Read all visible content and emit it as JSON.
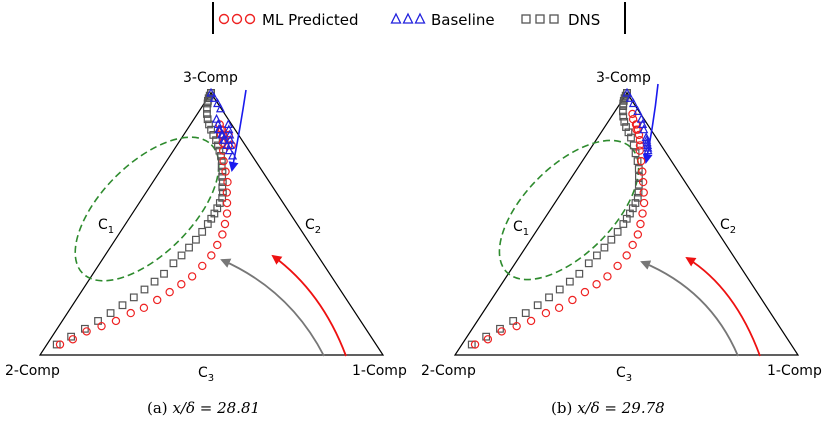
{
  "legend": {
    "entries": [
      {
        "label": "ML Predicted",
        "marker": "circle",
        "color": "#ee2222"
      },
      {
        "label": "Baseline",
        "marker": "triangle",
        "color": "#2222dd"
      },
      {
        "label": "DNS",
        "marker": "square",
        "color": "#555555"
      }
    ]
  },
  "colors": {
    "ml": "#ee2222",
    "baseline": "#2222dd",
    "dns": "#555555",
    "region": "#2e8b2e",
    "arrow_blue": "#1a1aee",
    "arrow_red": "#ee1111",
    "arrow_gray": "#777777"
  },
  "chart_data": [
    {
      "type": "scatter",
      "caption_prefix": "(a)",
      "caption_math": "x/δ = 28.81",
      "corner_labels": {
        "top": "3-Comp",
        "left": "2-Comp",
        "right": "1-Comp"
      },
      "edge_labels": {
        "c1": "C",
        "c1_sub": "1",
        "c2": "C",
        "c2_sub": "2",
        "c3": "C",
        "c3_sub": "3"
      },
      "series": [
        {
          "name": "DNS",
          "points": [
            [
              0.03,
              0.04
            ],
            [
              0.06,
              0.07
            ],
            [
              0.09,
              0.1
            ],
            [
              0.12,
              0.13
            ],
            [
              0.15,
              0.16
            ],
            [
              0.18,
              0.19
            ],
            [
              0.21,
              0.22
            ],
            [
              0.24,
              0.25
            ],
            [
              0.27,
              0.28
            ],
            [
              0.3,
              0.31
            ],
            [
              0.33,
              0.35
            ],
            [
              0.36,
              0.38
            ],
            [
              0.39,
              0.41
            ],
            [
              0.42,
              0.44
            ],
            [
              0.45,
              0.47
            ],
            [
              0.48,
              0.5
            ],
            [
              0.5,
              0.52
            ],
            [
              0.52,
              0.54
            ],
            [
              0.54,
              0.56
            ],
            [
              0.56,
              0.58
            ],
            [
              0.58,
              0.6
            ],
            [
              0.59,
              0.62
            ],
            [
              0.59,
              0.64
            ],
            [
              0.6,
              0.66
            ],
            [
              0.6,
              0.68
            ],
            [
              0.61,
              0.7
            ],
            [
              0.61,
              0.72
            ],
            [
              0.62,
              0.74
            ],
            [
              0.62,
              0.76
            ],
            [
              0.61,
              0.78
            ],
            [
              0.6,
              0.8
            ],
            [
              0.58,
              0.82
            ],
            [
              0.54,
              0.84
            ],
            [
              0.5,
              0.86
            ],
            [
              0.45,
              0.88
            ],
            [
              0.4,
              0.9
            ],
            [
              0.35,
              0.92
            ],
            [
              0.3,
              0.94
            ],
            [
              0.25,
              0.96
            ],
            [
              0.2,
              0.97
            ],
            [
              0.16,
              0.98
            ],
            [
              0.12,
              0.99
            ],
            [
              0.1,
              1.0
            ],
            [
              0.08,
              1.0
            ],
            [
              0.06,
              1.0
            ]
          ]
        },
        {
          "name": "ML Predicted",
          "points": [
            [
              0.04,
              0.04
            ],
            [
              0.07,
              0.06
            ],
            [
              0.1,
              0.09
            ],
            [
              0.14,
              0.11
            ],
            [
              0.18,
              0.13
            ],
            [
              0.22,
              0.16
            ],
            [
              0.26,
              0.18
            ],
            [
              0.3,
              0.21
            ],
            [
              0.34,
              0.24
            ],
            [
              0.38,
              0.27
            ],
            [
              0.42,
              0.3
            ],
            [
              0.46,
              0.34
            ],
            [
              0.5,
              0.38
            ],
            [
              0.53,
              0.42
            ],
            [
              0.56,
              0.46
            ],
            [
              0.58,
              0.5
            ],
            [
              0.6,
              0.54
            ],
            [
              0.61,
              0.58
            ],
            [
              0.62,
              0.62
            ],
            [
              0.64,
              0.66
            ],
            [
              0.64,
              0.7
            ],
            [
              0.64,
              0.74
            ],
            [
              0.66,
              0.78
            ],
            [
              0.68,
              0.81
            ],
            [
              0.71,
              0.82
            ],
            [
              0.72,
              0.84
            ],
            [
              0.73,
              0.86
            ],
            [
              0.71,
              0.88
            ],
            [
              0.7,
              0.86
            ],
            [
              0.68,
              0.84
            ],
            [
              0.75,
              0.8
            ],
            [
              0.78,
              0.82
            ],
            [
              0.82,
              0.84
            ],
            [
              0.8,
              0.8
            ]
          ]
        },
        {
          "name": "Baseline",
          "points": [
            [
              0.66,
              0.9
            ],
            [
              0.67,
              0.88
            ],
            [
              0.66,
              0.86
            ],
            [
              0.68,
              0.86
            ],
            [
              0.69,
              0.84
            ],
            [
              0.7,
              0.82
            ],
            [
              0.71,
              0.84
            ],
            [
              0.72,
              0.82
            ],
            [
              0.73,
              0.8
            ],
            [
              0.74,
              0.78
            ],
            [
              0.76,
              0.76
            ],
            [
              0.78,
              0.8
            ],
            [
              0.81,
              0.82
            ],
            [
              0.84,
              0.84
            ],
            [
              0.87,
              0.86
            ],
            [
              0.92,
              0.88
            ],
            [
              0.96,
              0.94
            ],
            [
              0.98,
              0.96
            ],
            [
              0.99,
              0.98
            ],
            [
              1.0,
              1.0
            ]
          ]
        }
      ]
    },
    {
      "type": "scatter",
      "caption_prefix": "(b)",
      "caption_math": "x/δ = 29.78",
      "corner_labels": {
        "top": "3-Comp",
        "left": "2-Comp",
        "right": "1-Comp"
      },
      "edge_labels": {
        "c1": "C",
        "c1_sub": "1",
        "c2": "C",
        "c2_sub": "2",
        "c3": "C",
        "c3_sub": "3"
      },
      "series": [
        {
          "name": "DNS",
          "points": [
            [
              0.03,
              0.04
            ],
            [
              0.06,
              0.07
            ],
            [
              0.09,
              0.1
            ],
            [
              0.12,
              0.13
            ],
            [
              0.15,
              0.16
            ],
            [
              0.18,
              0.19
            ],
            [
              0.21,
              0.22
            ],
            [
              0.24,
              0.25
            ],
            [
              0.27,
              0.28
            ],
            [
              0.3,
              0.31
            ],
            [
              0.33,
              0.35
            ],
            [
              0.36,
              0.38
            ],
            [
              0.39,
              0.41
            ],
            [
              0.42,
              0.44
            ],
            [
              0.45,
              0.47
            ],
            [
              0.48,
              0.5
            ],
            [
              0.5,
              0.52
            ],
            [
              0.52,
              0.54
            ],
            [
              0.54,
              0.56
            ],
            [
              0.56,
              0.58
            ],
            [
              0.58,
              0.6
            ],
            [
              0.59,
              0.62
            ],
            [
              0.6,
              0.65
            ],
            [
              0.61,
              0.68
            ],
            [
              0.62,
              0.71
            ],
            [
              0.62,
              0.74
            ],
            [
              0.61,
              0.77
            ],
            [
              0.6,
              0.8
            ],
            [
              0.57,
              0.83
            ],
            [
              0.53,
              0.85
            ],
            [
              0.48,
              0.87
            ],
            [
              0.43,
              0.89
            ],
            [
              0.38,
              0.91
            ],
            [
              0.33,
              0.93
            ],
            [
              0.28,
              0.95
            ],
            [
              0.23,
              0.96
            ],
            [
              0.19,
              0.97
            ],
            [
              0.15,
              0.98
            ],
            [
              0.12,
              0.99
            ],
            [
              0.1,
              1.0
            ],
            [
              0.08,
              1.0
            ],
            [
              0.06,
              1.0
            ]
          ]
        },
        {
          "name": "ML Predicted",
          "points": [
            [
              0.04,
              0.04
            ],
            [
              0.07,
              0.06
            ],
            [
              0.1,
              0.09
            ],
            [
              0.14,
              0.11
            ],
            [
              0.18,
              0.13
            ],
            [
              0.22,
              0.16
            ],
            [
              0.26,
              0.18
            ],
            [
              0.3,
              0.21
            ],
            [
              0.34,
              0.24
            ],
            [
              0.38,
              0.27
            ],
            [
              0.42,
              0.3
            ],
            [
              0.46,
              0.34
            ],
            [
              0.5,
              0.38
            ],
            [
              0.53,
              0.42
            ],
            [
              0.56,
              0.46
            ],
            [
              0.58,
              0.5
            ],
            [
              0.6,
              0.54
            ],
            [
              0.62,
              0.58
            ],
            [
              0.63,
              0.62
            ],
            [
              0.64,
              0.66
            ],
            [
              0.65,
              0.7
            ],
            [
              0.66,
              0.74
            ],
            [
              0.67,
              0.78
            ],
            [
              0.69,
              0.8
            ],
            [
              0.71,
              0.82
            ],
            [
              0.72,
              0.84
            ],
            [
              0.73,
              0.86
            ],
            [
              0.74,
              0.88
            ],
            [
              0.72,
              0.88
            ],
            [
              0.7,
              0.86
            ],
            [
              0.68,
              0.9
            ],
            [
              0.7,
              0.92
            ]
          ]
        },
        {
          "name": "Baseline",
          "points": [
            [
              0.78,
              0.78
            ],
            [
              0.79,
              0.79
            ],
            [
              0.8,
              0.8
            ],
            [
              0.81,
              0.81
            ],
            [
              0.82,
              0.82
            ],
            [
              0.83,
              0.83
            ],
            [
              0.85,
              0.86
            ],
            [
              0.88,
              0.88
            ],
            [
              0.92,
              0.9
            ],
            [
              0.95,
              0.93
            ],
            [
              0.97,
              0.96
            ],
            [
              0.99,
              0.98
            ],
            [
              1.0,
              1.0
            ]
          ]
        }
      ]
    }
  ]
}
